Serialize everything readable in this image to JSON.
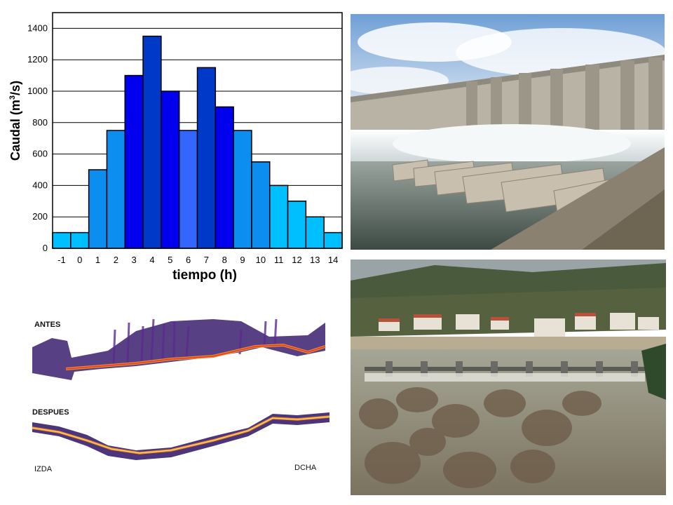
{
  "chart_data": {
    "type": "bar",
    "categories": [
      "-1",
      "0",
      "1",
      "2",
      "3",
      "4",
      "5",
      "6",
      "7",
      "8",
      "9",
      "10",
      "11",
      "12",
      "13",
      "14"
    ],
    "values": [
      100,
      100,
      500,
      750,
      1100,
      1350,
      1000,
      750,
      1150,
      900,
      750,
      550,
      400,
      300,
      200,
      100
    ],
    "bar_colors": [
      "#00bfff",
      "#00bfff",
      "#0b8ef0",
      "#0b8ef0",
      "#0000ee",
      "#0038c8",
      "#0000ee",
      "#3366ff",
      "#0038c8",
      "#0000ee",
      "#0b8ef0",
      "#0b8ef0",
      "#00bfff",
      "#00bfff",
      "#00bfff",
      "#00bfff"
    ],
    "xlabel": "tiempo (h)",
    "ylabel_main": "Caudal (m",
    "ylabel_sup": "3",
    "ylabel_end": "/s)",
    "ylim": [
      0,
      1500
    ],
    "yticks": [
      0,
      200,
      400,
      600,
      800,
      1000,
      1200,
      1400
    ],
    "grid": "horizontal"
  },
  "echograms": {
    "before_label": "ANTES",
    "after_label": "DESPUES",
    "left_label": "IZDA",
    "right_label": "DCHA"
  },
  "colors": {
    "sky": "#a9c8ea",
    "concrete": "#b8b3a4",
    "water_spray": "#eef2f3",
    "river": "#7d7766",
    "forest": "#3f4a2e",
    "echo_purple": "#3a1f6e",
    "echo_orange": "#f08a2a"
  }
}
